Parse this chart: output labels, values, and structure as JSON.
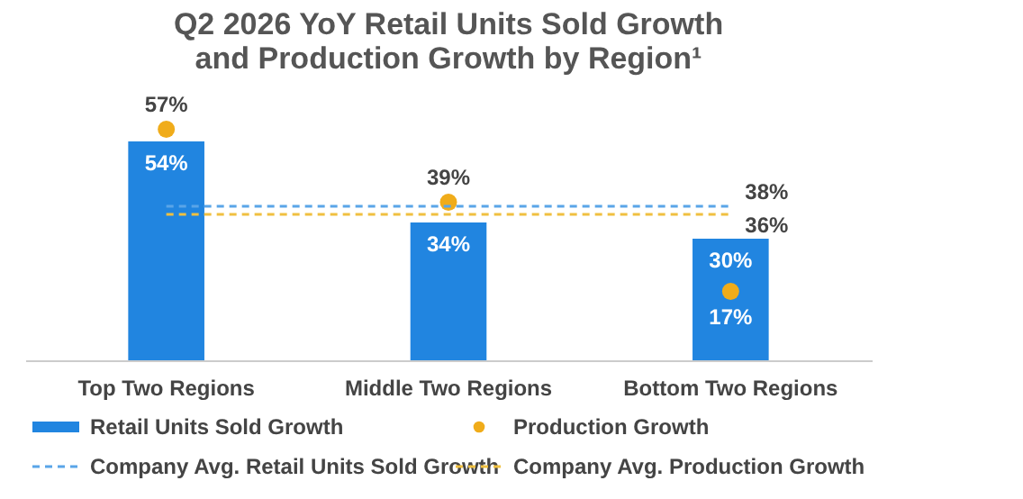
{
  "chart_data": {
    "type": "bar",
    "title": "Q2 2026 YoY Retail Units Sold Growth\nand Production Growth by Region¹",
    "categories": [
      "Top Two Regions",
      "Middle Two Regions",
      "Bottom Two Regions"
    ],
    "series": [
      {
        "name": "Retail Units Sold Growth",
        "color": "#2185e0",
        "values": [
          54,
          34,
          30
        ],
        "value_labels": [
          "54%",
          "34%",
          "30%"
        ]
      },
      {
        "name": "Production Growth",
        "type": "scatter",
        "color": "#f0ac1a",
        "marker": "circle",
        "values": [
          57,
          39,
          17
        ],
        "value_labels": [
          "57%",
          "39%",
          "17%"
        ]
      },
      {
        "name": "Company Avg. Retail Units Sold Growth",
        "type": "line",
        "color": "#5aa5e8",
        "line_style": "dashed",
        "values": [
          38,
          38,
          38
        ],
        "value_labels": [
          null,
          null,
          "38%"
        ]
      },
      {
        "name": "Company Avg. Production Growth",
        "type": "line",
        "color": "#f0c040",
        "line_style": "dashed",
        "values": [
          36,
          36,
          36
        ],
        "value_labels": [
          null,
          null,
          "36%"
        ]
      }
    ],
    "legend": "bottom",
    "grid": false,
    "tick_labels": "x"
  }
}
